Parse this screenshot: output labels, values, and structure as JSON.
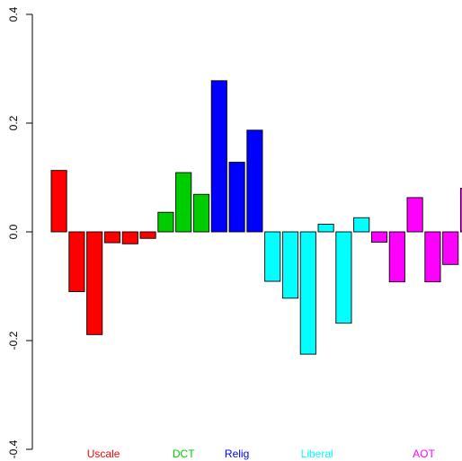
{
  "chart_data": {
    "type": "bar",
    "title": "",
    "xlabel": "",
    "ylabel": "",
    "ylim": [
      -0.4,
      0.4
    ],
    "yticks": [
      -0.4,
      -0.2,
      0.0,
      0.2,
      0.4
    ],
    "ytick_labels": [
      "-0.4",
      "-0.2",
      "0.0",
      "0.2",
      "0.4"
    ],
    "grid": false,
    "legend": "none",
    "groups": [
      {
        "name": "Uscale",
        "color": "#ff0000",
        "values": [
          0.113,
          -0.11,
          -0.189,
          -0.02,
          -0.022,
          -0.012
        ]
      },
      {
        "name": "DCT",
        "color": "#00cd00",
        "values": [
          0.036,
          0.109,
          0.069
        ]
      },
      {
        "name": "Relig",
        "color": "#0000ff",
        "values": [
          0.278,
          0.128,
          0.187
        ]
      },
      {
        "name": "Liberal",
        "color": "#00ffff",
        "values": [
          -0.091,
          -0.122,
          -0.225,
          0.014,
          -0.168,
          0.026
        ]
      },
      {
        "name": "AOT",
        "color": "#ff00ff",
        "values": [
          -0.019,
          -0.092,
          0.063,
          -0.092,
          -0.06,
          0.08
        ]
      }
    ]
  }
}
